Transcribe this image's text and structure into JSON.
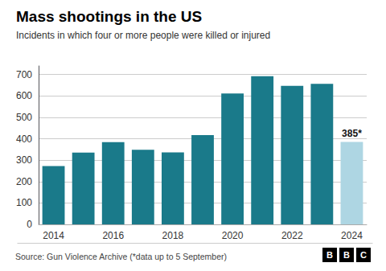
{
  "chart_data": {
    "type": "bar",
    "title": "Mass shootings in the US",
    "subtitle": "Incidents in which four or more people were killed or injured",
    "categories": [
      "2014",
      null,
      "2016",
      null,
      "2018",
      null,
      "2020",
      null,
      "2022",
      null,
      "2024"
    ],
    "values": [
      272,
      335,
      384,
      348,
      336,
      417,
      611,
      692,
      647,
      656,
      385
    ],
    "colors": [
      "#1a7a8a",
      "#1a7a8a",
      "#1a7a8a",
      "#1a7a8a",
      "#1a7a8a",
      "#1a7a8a",
      "#1a7a8a",
      "#1a7a8a",
      "#1a7a8a",
      "#1a7a8a",
      "#aed6e3"
    ],
    "annotations": [
      {
        "category": "2024",
        "text": "385*"
      }
    ],
    "ylim": [
      0,
      740
    ],
    "yticks": [
      0,
      100,
      200,
      300,
      400,
      500,
      600,
      700
    ],
    "grid": true,
    "source": "Source: Gun Violence Archive (*data up to 5 September)",
    "logo": "BBC"
  }
}
